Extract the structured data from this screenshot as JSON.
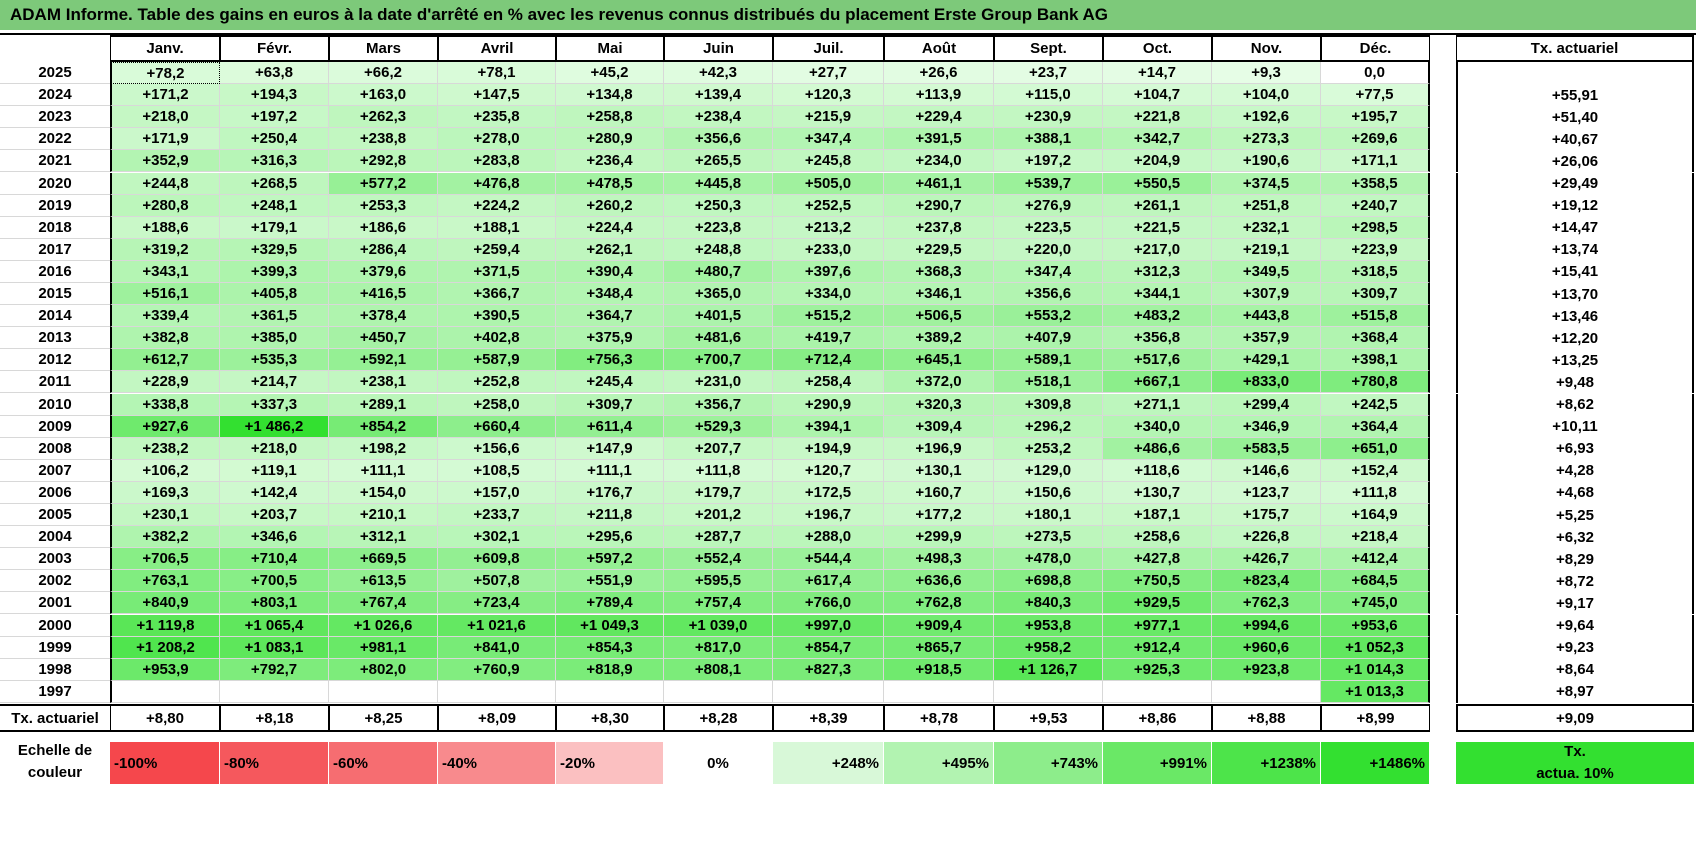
{
  "title": "ADAM Informe. Table des gains en euros à la date d'arrêté en % avec les revenus connus distribués du placement Erste Group Bank AG",
  "months": [
    "Janv.",
    "Févr.",
    "Mars",
    "Avril",
    "Mai",
    "Juin",
    "Juil.",
    "Août",
    "Sept.",
    "Oct.",
    "Nov.",
    "Déc."
  ],
  "rate_header": "Tx. actuariel",
  "rows": [
    {
      "year": "2025",
      "values": [
        "+78,2",
        "+63,8",
        "+66,2",
        "+78,1",
        "+45,2",
        "+42,3",
        "+27,7",
        "+26,6",
        "+23,7",
        "+14,7",
        "+9,3",
        "0,0"
      ],
      "rate": ""
    },
    {
      "year": "2024",
      "values": [
        "+171,2",
        "+194,3",
        "+163,0",
        "+147,5",
        "+134,8",
        "+139,4",
        "+120,3",
        "+113,9",
        "+115,0",
        "+104,7",
        "+104,0",
        "+77,5"
      ],
      "rate": "+55,91"
    },
    {
      "year": "2023",
      "values": [
        "+218,0",
        "+197,2",
        "+262,3",
        "+235,8",
        "+258,8",
        "+238,4",
        "+215,9",
        "+229,4",
        "+230,9",
        "+221,8",
        "+192,6",
        "+195,7"
      ],
      "rate": "+51,40"
    },
    {
      "year": "2022",
      "values": [
        "+171,9",
        "+250,4",
        "+238,8",
        "+278,0",
        "+280,9",
        "+356,6",
        "+347,4",
        "+391,5",
        "+388,1",
        "+342,7",
        "+273,3",
        "+269,6"
      ],
      "rate": "+40,67"
    },
    {
      "year": "2021",
      "values": [
        "+352,9",
        "+316,3",
        "+292,8",
        "+283,8",
        "+236,4",
        "+265,5",
        "+245,8",
        "+234,0",
        "+197,2",
        "+204,9",
        "+190,6",
        "+171,1"
      ],
      "rate": "+26,06"
    },
    {
      "year": "2020",
      "values": [
        "+244,8",
        "+268,5",
        "+577,2",
        "+476,8",
        "+478,5",
        "+445,8",
        "+505,0",
        "+461,1",
        "+539,7",
        "+550,5",
        "+374,5",
        "+358,5"
      ],
      "rate": "+29,49"
    },
    {
      "year": "2019",
      "values": [
        "+280,8",
        "+248,1",
        "+253,3",
        "+224,2",
        "+260,2",
        "+250,3",
        "+252,5",
        "+290,7",
        "+276,9",
        "+261,1",
        "+251,8",
        "+240,7"
      ],
      "rate": "+19,12"
    },
    {
      "year": "2018",
      "values": [
        "+188,6",
        "+179,1",
        "+186,6",
        "+188,1",
        "+224,4",
        "+223,8",
        "+213,2",
        "+237,8",
        "+223,5",
        "+221,5",
        "+232,1",
        "+298,5"
      ],
      "rate": "+14,47"
    },
    {
      "year": "2017",
      "values": [
        "+319,2",
        "+329,5",
        "+286,4",
        "+259,4",
        "+262,1",
        "+248,8",
        "+233,0",
        "+229,5",
        "+220,0",
        "+217,0",
        "+219,1",
        "+223,9"
      ],
      "rate": "+13,74"
    },
    {
      "year": "2016",
      "values": [
        "+343,1",
        "+399,3",
        "+379,6",
        "+371,5",
        "+390,4",
        "+480,7",
        "+397,6",
        "+368,3",
        "+347,4",
        "+312,3",
        "+349,5",
        "+318,5"
      ],
      "rate": "+15,41"
    },
    {
      "year": "2015",
      "values": [
        "+516,1",
        "+405,8",
        "+416,5",
        "+366,7",
        "+348,4",
        "+365,0",
        "+334,0",
        "+346,1",
        "+356,6",
        "+344,1",
        "+307,9",
        "+309,7"
      ],
      "rate": "+13,70"
    },
    {
      "year": "2014",
      "values": [
        "+339,4",
        "+361,5",
        "+378,4",
        "+390,5",
        "+364,7",
        "+401,5",
        "+515,2",
        "+506,5",
        "+553,2",
        "+483,2",
        "+443,8",
        "+515,8"
      ],
      "rate": "+13,46"
    },
    {
      "year": "2013",
      "values": [
        "+382,8",
        "+385,0",
        "+450,7",
        "+402,8",
        "+375,9",
        "+481,6",
        "+419,7",
        "+389,2",
        "+407,9",
        "+356,8",
        "+357,9",
        "+368,4"
      ],
      "rate": "+12,20"
    },
    {
      "year": "2012",
      "values": [
        "+612,7",
        "+535,3",
        "+592,1",
        "+587,9",
        "+756,3",
        "+700,7",
        "+712,4",
        "+645,1",
        "+589,1",
        "+517,6",
        "+429,1",
        "+398,1"
      ],
      "rate": "+13,25"
    },
    {
      "year": "2011",
      "values": [
        "+228,9",
        "+214,7",
        "+238,1",
        "+252,8",
        "+245,4",
        "+231,0",
        "+258,4",
        "+372,0",
        "+518,1",
        "+667,1",
        "+833,0",
        "+780,8"
      ],
      "rate": "+9,48"
    },
    {
      "year": "2010",
      "values": [
        "+338,8",
        "+337,3",
        "+289,1",
        "+258,0",
        "+309,7",
        "+356,7",
        "+290,9",
        "+320,3",
        "+309,8",
        "+271,1",
        "+299,4",
        "+242,5"
      ],
      "rate": "+8,62"
    },
    {
      "year": "2009",
      "values": [
        "+927,6",
        "+1 486,2",
        "+854,2",
        "+660,4",
        "+611,4",
        "+529,3",
        "+394,1",
        "+309,4",
        "+296,2",
        "+340,0",
        "+346,9",
        "+364,4"
      ],
      "rate": "+10,11"
    },
    {
      "year": "2008",
      "values": [
        "+238,2",
        "+218,0",
        "+198,2",
        "+156,6",
        "+147,9",
        "+207,7",
        "+194,9",
        "+196,9",
        "+253,2",
        "+486,6",
        "+583,5",
        "+651,0"
      ],
      "rate": "+6,93"
    },
    {
      "year": "2007",
      "values": [
        "+106,2",
        "+119,1",
        "+111,1",
        "+108,5",
        "+111,1",
        "+111,8",
        "+120,7",
        "+130,1",
        "+129,0",
        "+118,6",
        "+146,6",
        "+152,4"
      ],
      "rate": "+4,28"
    },
    {
      "year": "2006",
      "values": [
        "+169,3",
        "+142,4",
        "+154,0",
        "+157,0",
        "+176,7",
        "+179,7",
        "+172,5",
        "+160,7",
        "+150,6",
        "+130,7",
        "+123,7",
        "+111,8"
      ],
      "rate": "+4,68"
    },
    {
      "year": "2005",
      "values": [
        "+230,1",
        "+203,7",
        "+210,1",
        "+233,7",
        "+211,8",
        "+201,2",
        "+196,7",
        "+177,2",
        "+180,1",
        "+187,1",
        "+175,7",
        "+164,9"
      ],
      "rate": "+5,25"
    },
    {
      "year": "2004",
      "values": [
        "+382,2",
        "+346,6",
        "+312,1",
        "+302,1",
        "+295,6",
        "+287,7",
        "+288,0",
        "+299,9",
        "+273,5",
        "+258,6",
        "+226,8",
        "+218,4"
      ],
      "rate": "+6,32"
    },
    {
      "year": "2003",
      "values": [
        "+706,5",
        "+710,4",
        "+669,5",
        "+609,8",
        "+597,2",
        "+552,4",
        "+544,4",
        "+498,3",
        "+478,0",
        "+427,8",
        "+426,7",
        "+412,4"
      ],
      "rate": "+8,29"
    },
    {
      "year": "2002",
      "values": [
        "+763,1",
        "+700,5",
        "+613,5",
        "+507,8",
        "+551,9",
        "+595,5",
        "+617,4",
        "+636,6",
        "+698,8",
        "+750,5",
        "+823,4",
        "+684,5"
      ],
      "rate": "+8,72"
    },
    {
      "year": "2001",
      "values": [
        "+840,9",
        "+803,1",
        "+767,4",
        "+723,4",
        "+789,4",
        "+757,4",
        "+766,0",
        "+762,8",
        "+840,3",
        "+929,5",
        "+762,3",
        "+745,0"
      ],
      "rate": "+9,17"
    },
    {
      "year": "2000",
      "values": [
        "+1 119,8",
        "+1 065,4",
        "+1 026,6",
        "+1 021,6",
        "+1 049,3",
        "+1 039,0",
        "+997,0",
        "+909,4",
        "+953,8",
        "+977,1",
        "+994,6",
        "+953,6"
      ],
      "rate": "+9,64"
    },
    {
      "year": "1999",
      "values": [
        "+1 208,2",
        "+1 083,1",
        "+981,1",
        "+841,0",
        "+854,3",
        "+817,0",
        "+854,7",
        "+865,7",
        "+958,2",
        "+912,4",
        "+960,6",
        "+1 052,3"
      ],
      "rate": "+9,23"
    },
    {
      "year": "1998",
      "values": [
        "+953,9",
        "+792,7",
        "+802,0",
        "+760,9",
        "+818,9",
        "+808,1",
        "+827,3",
        "+918,5",
        "+1 126,7",
        "+925,3",
        "+923,8",
        "+1 014,3"
      ],
      "rate": "+8,64"
    },
    {
      "year": "1997",
      "values": [
        "",
        "",
        "",
        "",
        "",
        "",
        "",
        "",
        "",
        "",
        "",
        "+1 013,3"
      ],
      "rate": "+8,97"
    }
  ],
  "footer": {
    "label": "Tx. actuariel",
    "values": [
      "+8,80",
      "+8,18",
      "+8,25",
      "+8,09",
      "+8,30",
      "+8,28",
      "+8,39",
      "+8,78",
      "+9,53",
      "+8,86",
      "+8,88",
      "+8,99"
    ],
    "total": "+9,09"
  },
  "scale": {
    "label_line1": "Echelle de",
    "label_line2": "couleur",
    "items": [
      {
        "text": "-100%",
        "color": "#f5474c",
        "align": "left"
      },
      {
        "text": "-80%",
        "color": "#f5585d",
        "align": "left"
      },
      {
        "text": "-60%",
        "color": "#f66d71",
        "align": "left"
      },
      {
        "text": "-40%",
        "color": "#f88a8d",
        "align": "left"
      },
      {
        "text": "-20%",
        "color": "#fbc0c1",
        "align": "left"
      },
      {
        "text": "0%",
        "color": "#ffffff",
        "align": "center"
      },
      {
        "text": "+248%",
        "color": "#d8f8d8",
        "align": "right"
      },
      {
        "text": "+495%",
        "color": "#b2f3b1",
        "align": "right"
      },
      {
        "text": "+743%",
        "color": "#8ded8b",
        "align": "right"
      },
      {
        "text": "+991%",
        "color": "#6ae866",
        "align": "right"
      },
      {
        "text": "+1238%",
        "color": "#4de44a",
        "align": "right"
      },
      {
        "text": "+1486%",
        "color": "#33e030",
        "align": "right"
      }
    ],
    "rate_line1": "Tx.",
    "rate_line2": "actua. 10%",
    "rate_color": "#33e030"
  },
  "colors": {
    "title_bg": "#7dc97a",
    "max_green": "#33e030"
  }
}
